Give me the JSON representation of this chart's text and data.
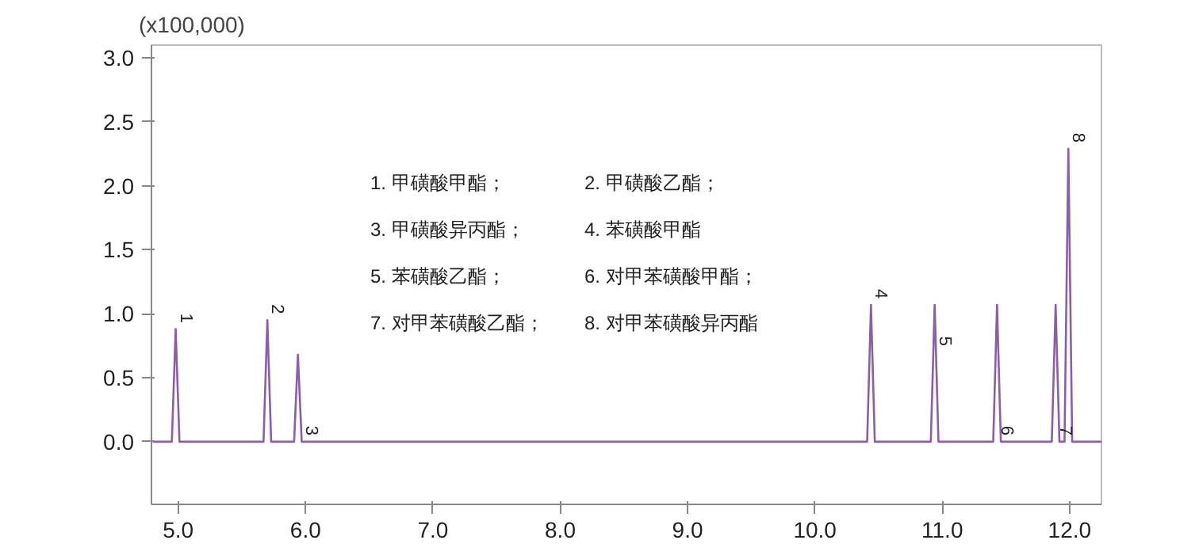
{
  "chart_data": {
    "type": "line",
    "ylabel": "(x100,000)",
    "x": [
      4.8,
      4.95,
      4.98,
      5.01,
      5.67,
      5.7,
      5.73,
      5.91,
      5.94,
      5.97,
      10.41,
      10.44,
      10.47,
      10.91,
      10.94,
      10.97,
      11.4,
      11.43,
      11.46,
      11.86,
      11.89,
      11.92,
      11.96,
      11.99,
      12.02,
      12.25
    ],
    "series": [
      {
        "color": "#8a5fa8",
        "values": [
          0,
          0,
          0.88,
          0,
          0,
          0.95,
          0,
          0,
          0.68,
          0,
          0,
          1.07,
          0,
          0,
          1.07,
          0,
          0,
          1.07,
          0,
          0,
          1.07,
          0,
          0,
          2.29,
          0,
          0
        ]
      }
    ],
    "xlim": [
      4.79,
      12.25
    ],
    "ylim": [
      -0.49,
      3.1
    ],
    "xticks": [
      {
        "value": 5,
        "label": "5.0"
      },
      {
        "value": 6,
        "label": "6.0"
      },
      {
        "value": 7,
        "label": "7.0"
      },
      {
        "value": 8,
        "label": "8.0"
      },
      {
        "value": 9,
        "label": "9.0"
      },
      {
        "value": 10,
        "label": "10.0"
      },
      {
        "value": 11,
        "label": "11.0"
      },
      {
        "value": 12,
        "label": "12.0"
      }
    ],
    "yticks": [
      {
        "value": 0,
        "label": "0.0"
      },
      {
        "value": 0.5,
        "label": "0.5"
      },
      {
        "value": 1,
        "label": "1.0"
      },
      {
        "value": 1.5,
        "label": "1.5"
      },
      {
        "value": 2,
        "label": "2.0"
      },
      {
        "value": 2.5,
        "label": "2.5"
      },
      {
        "value": 3,
        "label": "3.0"
      }
    ],
    "grid": false,
    "line_style": "solid",
    "marker": "none",
    "annotations": [
      {
        "text": "1",
        "x": 4.98,
        "y": 0.88
      },
      {
        "text": "2",
        "x": 5.7,
        "y": 0.95
      },
      {
        "text": "3",
        "x": 5.97,
        "y": 0.0
      },
      {
        "text": "4",
        "x": 10.44,
        "y": 1.07
      },
      {
        "text": "5",
        "x": 10.94,
        "y": 0.7
      },
      {
        "text": "6",
        "x": 11.43,
        "y": 0.0
      },
      {
        "text": "7",
        "x": 11.89,
        "y": 0.0
      },
      {
        "text": "8",
        "x": 11.99,
        "y": 2.29
      },
      "1. 甲磺酸甲酯；",
      "2. 甲磺酸乙酯；",
      "3. 甲磺酸异丙酯；",
      "4. 苯磺酸甲酯",
      "5. 苯磺酸乙酯；",
      "6. 对甲苯磺酸甲酯；",
      "7. 对甲苯磺酸乙酯；",
      "8. 对甲苯磺酸异丙酯"
    ]
  }
}
